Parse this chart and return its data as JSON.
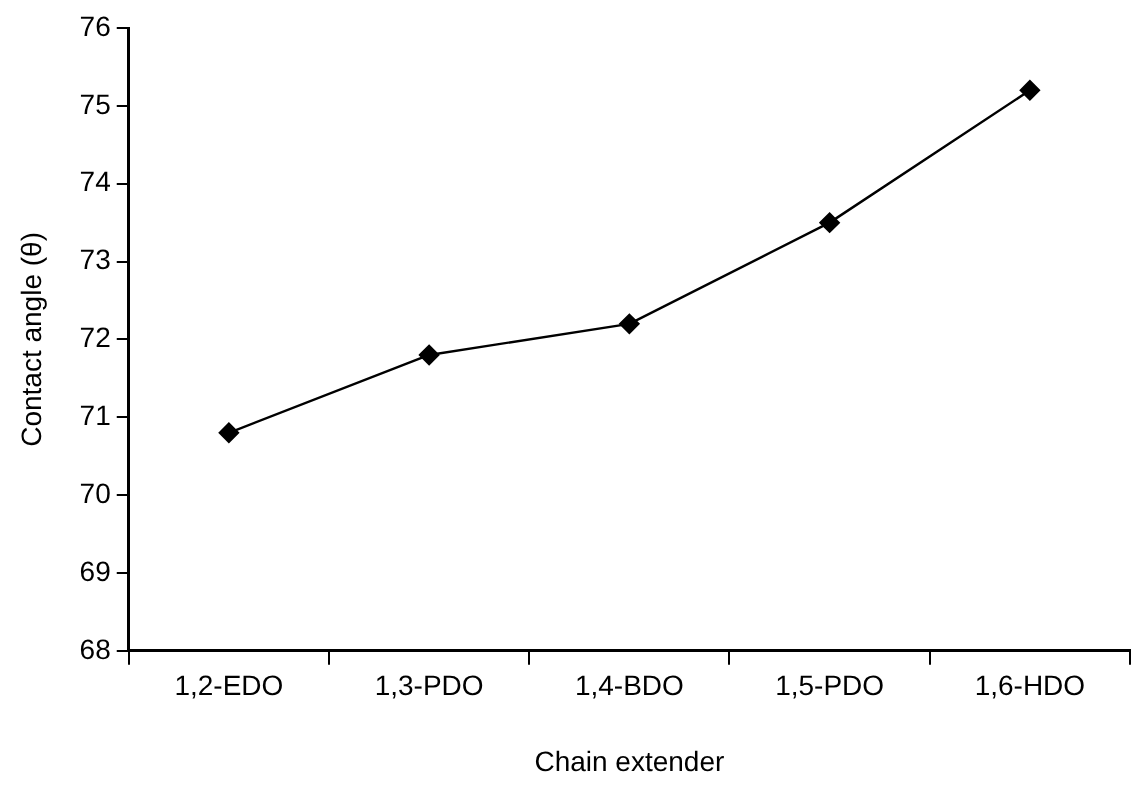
{
  "chart_data": {
    "type": "line",
    "xlabel": "Chain extender",
    "ylabel": "Contact angle (θ)",
    "categories": [
      "1,2-EDO",
      "1,3-PDO",
      "1,4-BDO",
      "1,5-PDO",
      "1,6-HDO"
    ],
    "series": [
      {
        "color": "#000000",
        "values": [
          70.8,
          71.8,
          72.2,
          73.5,
          75.2
        ]
      }
    ],
    "ylim": [
      68,
      76
    ],
    "yticks": [
      68,
      69,
      70,
      71,
      72,
      73,
      74,
      75,
      76
    ],
    "grid": false,
    "legend": false,
    "marker": "diamond",
    "line_style": "solid"
  }
}
